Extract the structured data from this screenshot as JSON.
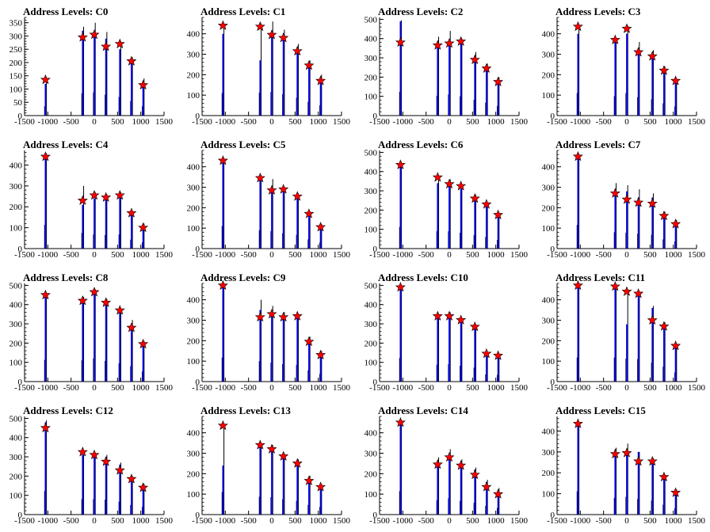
{
  "colors": {
    "bar": "#0000ff",
    "raw": "#000000",
    "marker": "#ff0000",
    "axis": "#000000"
  },
  "chart_data": [
    {
      "type": "bar",
      "title": "Address Levels: C0",
      "xlim": [
        -1500,
        1500
      ],
      "ylim": [
        0,
        370
      ],
      "xticks": [
        "-1500",
        "-1000",
        "-500",
        "0",
        "500",
        "1000",
        "1500"
      ],
      "yticks": [
        "0",
        "50",
        "100",
        "150",
        "200",
        "250",
        "300",
        "350"
      ],
      "x": [
        -1050,
        -250,
        0,
        250,
        550,
        800,
        1050
      ],
      "values": [
        120,
        320,
        315,
        290,
        250,
        200,
        110
      ],
      "raw": [
        140,
        335,
        350,
        315,
        280,
        220,
        140
      ],
      "markers": [
        135,
        295,
        305,
        260,
        270,
        205,
        115
      ]
    },
    {
      "type": "bar",
      "title": "Address Levels: C1",
      "xlim": [
        -1500,
        1500
      ],
      "ylim": [
        0,
        480
      ],
      "xticks": [
        "-1500",
        "-1000",
        "-500",
        "0",
        "500",
        "1000",
        "1500"
      ],
      "yticks": [
        "0",
        "100",
        "200",
        "300",
        "400"
      ],
      "x": [
        -1050,
        -250,
        0,
        250,
        550,
        800,
        1050
      ],
      "values": [
        400,
        270,
        400,
        390,
        330,
        250,
        180
      ],
      "raw": [
        440,
        450,
        460,
        420,
        350,
        270,
        200
      ],
      "markers": [
        440,
        435,
        395,
        380,
        315,
        245,
        170
      ]
    },
    {
      "type": "bar",
      "title": "Address Levels: C2",
      "xlim": [
        -1500,
        1500
      ],
      "ylim": [
        0,
        510
      ],
      "xticks": [
        "-1500",
        "-1000",
        "-500",
        "0",
        "500",
        "1000",
        "1500"
      ],
      "yticks": [
        "0",
        "100",
        "200",
        "300",
        "400",
        "500"
      ],
      "x": [
        -1050,
        -250,
        0,
        250,
        550,
        800,
        1050
      ],
      "values": [
        490,
        380,
        390,
        380,
        310,
        240,
        180
      ],
      "raw": [
        495,
        410,
        440,
        400,
        330,
        270,
        200
      ],
      "markers": [
        380,
        365,
        375,
        385,
        290,
        245,
        175
      ]
    },
    {
      "type": "bar",
      "title": "Address Levels: C3",
      "xlim": [
        -1500,
        1500
      ],
      "ylim": [
        0,
        480
      ],
      "xticks": [
        "-1500",
        "-1000",
        "-500",
        "0",
        "500",
        "1000",
        "1500"
      ],
      "yticks": [
        "0",
        "100",
        "200",
        "300",
        "400"
      ],
      "x": [
        -1050,
        -250,
        0,
        250,
        550,
        800,
        1050
      ],
      "values": [
        400,
        360,
        400,
        330,
        290,
        220,
        170
      ],
      "raw": [
        440,
        380,
        440,
        360,
        320,
        240,
        180
      ],
      "markers": [
        435,
        370,
        425,
        310,
        290,
        220,
        170
      ]
    },
    {
      "type": "bar",
      "title": "Address Levels: C4",
      "xlim": [
        -1500,
        1500
      ],
      "ylim": [
        0,
        470
      ],
      "xticks": [
        "-1500",
        "-1000",
        "-500",
        "0",
        "500",
        "1000",
        "1500"
      ],
      "yticks": [
        "0",
        "100",
        "200",
        "300",
        "400"
      ],
      "x": [
        -1050,
        -250,
        0,
        250,
        550,
        800,
        1050
      ],
      "values": [
        450,
        210,
        240,
        240,
        250,
        160,
        110
      ],
      "raw": [
        455,
        300,
        270,
        260,
        270,
        170,
        120
      ],
      "markers": [
        440,
        230,
        255,
        245,
        255,
        170,
        100
      ]
    },
    {
      "type": "bar",
      "title": "Address Levels: C5",
      "xlim": [
        -1500,
        1500
      ],
      "ylim": [
        0,
        480
      ],
      "xticks": [
        "-1500",
        "-1000",
        "-500",
        "0",
        "500",
        "1000",
        "1500"
      ],
      "yticks": [
        "0",
        "100",
        "200",
        "300",
        "400"
      ],
      "x": [
        -1050,
        -250,
        0,
        250,
        550,
        800,
        1050
      ],
      "values": [
        430,
        350,
        300,
        290,
        260,
        170,
        110
      ],
      "raw": [
        440,
        360,
        340,
        300,
        270,
        180,
        120
      ],
      "markers": [
        430,
        345,
        285,
        290,
        255,
        170,
        105
      ]
    },
    {
      "type": "bar",
      "title": "Address Levels: C6",
      "xlim": [
        -1500,
        1500
      ],
      "ylim": [
        0,
        510
      ],
      "xticks": [
        "-1500",
        "-1000",
        "-500",
        "0",
        "500",
        "1000",
        "1500"
      ],
      "yticks": [
        "0",
        "100",
        "200",
        "300",
        "400",
        "500"
      ],
      "x": [
        -1050,
        -250,
        0,
        250,
        550,
        800,
        1050
      ],
      "values": [
        440,
        340,
        340,
        310,
        260,
        230,
        170
      ],
      "raw": [
        450,
        360,
        360,
        330,
        280,
        240,
        180
      ],
      "markers": [
        435,
        370,
        335,
        325,
        260,
        230,
        175
      ]
    },
    {
      "type": "bar",
      "title": "Address Levels: C7",
      "xlim": [
        -1500,
        1500
      ],
      "ylim": [
        0,
        480
      ],
      "xticks": [
        "-1500",
        "-1000",
        "-500",
        "0",
        "500",
        "1000",
        "1500"
      ],
      "yticks": [
        "0",
        "100",
        "200",
        "300",
        "400"
      ],
      "x": [
        -1050,
        -250,
        0,
        250,
        550,
        800,
        1050
      ],
      "values": [
        450,
        290,
        280,
        250,
        250,
        160,
        130
      ],
      "raw": [
        460,
        320,
        310,
        290,
        270,
        180,
        140
      ],
      "markers": [
        450,
        270,
        240,
        225,
        220,
        160,
        120
      ]
    },
    {
      "type": "bar",
      "title": "Address Levels: C8",
      "xlim": [
        -1500,
        1500
      ],
      "ylim": [
        0,
        510
      ],
      "xticks": [
        "-1500",
        "-1000",
        "-500",
        "0",
        "500",
        "1000",
        "1500"
      ],
      "yticks": [
        "0",
        "100",
        "200",
        "300",
        "400",
        "500"
      ],
      "x": [
        -1050,
        -250,
        0,
        250,
        550,
        800,
        1050
      ],
      "values": [
        440,
        430,
        470,
        420,
        360,
        290,
        200
      ],
      "raw": [
        450,
        440,
        480,
        430,
        380,
        320,
        210
      ],
      "markers": [
        450,
        420,
        465,
        410,
        370,
        280,
        195
      ]
    },
    {
      "type": "bar",
      "title": "Address Levels: C9",
      "xlim": [
        -1500,
        1500
      ],
      "ylim": [
        0,
        480
      ],
      "xticks": [
        "-1500",
        "-1000",
        "-500",
        "0",
        "500",
        "1000",
        "1500"
      ],
      "yticks": [
        "0",
        "100",
        "200",
        "300",
        "400"
      ],
      "x": [
        -1050,
        -250,
        0,
        250,
        550,
        800,
        1050
      ],
      "values": [
        460,
        350,
        330,
        310,
        320,
        200,
        130
      ],
      "raw": [
        470,
        400,
        370,
        340,
        330,
        220,
        150
      ],
      "markers": [
        470,
        315,
        330,
        315,
        320,
        195,
        130
      ]
    },
    {
      "type": "bar",
      "title": "Address Levels: C10",
      "xlim": [
        -1500,
        1500
      ],
      "ylim": [
        0,
        510
      ],
      "xticks": [
        "-1500",
        "-1000",
        "-500",
        "0",
        "500",
        "1000",
        "1500"
      ],
      "yticks": [
        "0",
        "100",
        "200",
        "300",
        "400",
        "500"
      ],
      "x": [
        -1050,
        -250,
        0,
        250,
        550,
        800,
        1050
      ],
      "values": [
        480,
        340,
        350,
        310,
        280,
        140,
        130
      ],
      "raw": [
        490,
        350,
        360,
        330,
        290,
        150,
        140
      ],
      "markers": [
        490,
        340,
        340,
        320,
        285,
        145,
        135
      ]
    },
    {
      "type": "bar",
      "title": "Address Levels: C11",
      "xlim": [
        -1500,
        1500
      ],
      "ylim": [
        0,
        480
      ],
      "xticks": [
        "-1500",
        "-1000",
        "-500",
        "0",
        "500",
        "1000",
        "1500"
      ],
      "yticks": [
        "0",
        "100",
        "200",
        "300",
        "400"
      ],
      "x": [
        -1050,
        -250,
        0,
        250,
        550,
        800,
        1050
      ],
      "values": [
        460,
        460,
        280,
        420,
        360,
        260,
        170
      ],
      "raw": [
        470,
        470,
        450,
        440,
        370,
        290,
        180
      ],
      "markers": [
        470,
        465,
        440,
        430,
        300,
        270,
        175
      ]
    },
    {
      "type": "bar",
      "title": "Address Levels: C12",
      "xlim": [
        -1500,
        1500
      ],
      "ylim": [
        0,
        510
      ],
      "xticks": [
        "-1500",
        "-1000",
        "-500",
        "0",
        "500",
        "1000",
        "1500"
      ],
      "yticks": [
        "0",
        "100",
        "200",
        "300",
        "400",
        "500"
      ],
      "x": [
        -1050,
        -250,
        0,
        250,
        550,
        800,
        1050
      ],
      "values": [
        480,
        310,
        300,
        300,
        260,
        190,
        150
      ],
      "raw": [
        490,
        320,
        320,
        310,
        270,
        200,
        160
      ],
      "markers": [
        450,
        325,
        310,
        275,
        230,
        185,
        140
      ]
    },
    {
      "type": "bar",
      "title": "Address Levels: C13",
      "xlim": [
        -1500,
        1500
      ],
      "ylim": [
        0,
        480
      ],
      "xticks": [
        "-1500",
        "-1000",
        "-500",
        "0",
        "500",
        "1000",
        "1500"
      ],
      "yticks": [
        "0",
        "100",
        "200",
        "300",
        "400"
      ],
      "x": [
        -1050,
        -250,
        0,
        250,
        550,
        800,
        1050
      ],
      "values": [
        240,
        330,
        330,
        290,
        260,
        180,
        140
      ],
      "raw": [
        440,
        350,
        340,
        300,
        270,
        190,
        150
      ],
      "markers": [
        435,
        340,
        320,
        285,
        250,
        165,
        135
      ]
    },
    {
      "type": "bar",
      "title": "Address Levels: C14",
      "xlim": [
        -1500,
        1500
      ],
      "ylim": [
        0,
        480
      ],
      "xticks": [
        "-1500",
        "-1000",
        "-500",
        "0",
        "500",
        "1000",
        "1500"
      ],
      "yticks": [
        "0",
        "100",
        "200",
        "300",
        "400"
      ],
      "x": [
        -1050,
        -250,
        0,
        250,
        550,
        800,
        1050
      ],
      "values": [
        450,
        260,
        290,
        250,
        220,
        160,
        110
      ],
      "raw": [
        460,
        280,
        320,
        270,
        230,
        170,
        130
      ],
      "markers": [
        450,
        245,
        280,
        240,
        195,
        135,
        100
      ]
    },
    {
      "type": "bar",
      "title": "Address Levels: C15",
      "xlim": [
        -1500,
        1500
      ],
      "ylim": [
        0,
        470
      ],
      "xticks": [
        "-1500",
        "-1000",
        "-500",
        "0",
        "500",
        "1000",
        "1500"
      ],
      "yticks": [
        "0",
        "100",
        "200",
        "300",
        "400"
      ],
      "x": [
        -1050,
        -250,
        0,
        250,
        550,
        800,
        1050
      ],
      "values": [
        440,
        310,
        300,
        300,
        260,
        180,
        110
      ],
      "raw": [
        445,
        320,
        340,
        300,
        270,
        190,
        120
      ],
      "markers": [
        435,
        290,
        295,
        255,
        255,
        180,
        105
      ]
    }
  ]
}
